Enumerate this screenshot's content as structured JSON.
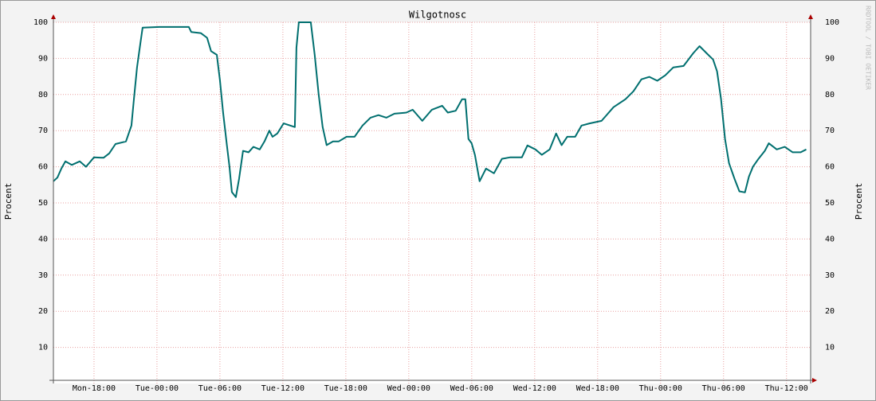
{
  "chart_data": {
    "type": "line",
    "title": "Wilgotnosc",
    "y_label": "Procent",
    "watermark": "RRDTOOL / TOBI OETIKER",
    "x": [
      14.13,
      14.51,
      14.89,
      15.27,
      15.88,
      16.64,
      17.24,
      18.0,
      18.91,
      19.45,
      20.05,
      21.04,
      21.57,
      21.8,
      22.1,
      22.41,
      22.63,
      24.23,
      27.04,
      27.27,
      28.18,
      28.78,
      29.16,
      29.7,
      30.0,
      30.3,
      30.68,
      30.91,
      31.14,
      31.52,
      31.82,
      32.2,
      32.73,
      33.19,
      33.8,
      34.25,
      34.71,
      35.01,
      35.47,
      36.07,
      37.14,
      37.29,
      37.52,
      38.66,
      39.03,
      39.41,
      39.79,
      40.17,
      40.78,
      41.31,
      42.07,
      42.83,
      43.59,
      44.35,
      45.11,
      45.87,
      46.63,
      47.77,
      48.37,
      49.29,
      50.2,
      51.18,
      51.72,
      52.47,
      53.08,
      53.39,
      53.69,
      53.99,
      54.3,
      54.75,
      55.36,
      56.12,
      56.88,
      57.64,
      58.78,
      59.31,
      60.07,
      60.68,
      61.43,
      62.04,
      62.57,
      63.1,
      63.86,
      64.47,
      65.23,
      66.37,
      67.51,
      68.65,
      69.41,
      70.17,
      70.93,
      71.68,
      72.44,
      73.2,
      74.19,
      75.1,
      75.71,
      76.47,
      77.0,
      77.38,
      77.76,
      78.14,
      78.52,
      79.05,
      79.51,
      80.04,
      80.42,
      80.8,
      81.33,
      81.93,
      82.31,
      83.07,
      83.83,
      84.59,
      85.35,
      85.88
    ],
    "series": [
      {
        "name": "Wilgotnosc",
        "color": "#006f6f",
        "values": [
          56,
          57,
          59.5,
          61.5,
          60.5,
          61.5,
          60,
          62.6,
          62.5,
          63.7,
          66.3,
          67,
          71.4,
          78.7,
          87.5,
          94,
          98.5,
          98.7,
          98.7,
          97.3,
          97,
          95.7,
          92,
          91,
          84,
          75,
          65.5,
          60,
          53,
          51.6,
          56.6,
          64.4,
          64,
          65.5,
          64.8,
          67,
          70,
          68.3,
          69.2,
          72,
          71,
          93,
          100,
          100,
          91,
          80,
          71,
          66,
          67,
          67,
          68.3,
          68.3,
          71.4,
          73.6,
          74.3,
          73.6,
          74.7,
          75,
          75.8,
          72.7,
          75.8,
          76.9,
          75,
          75.5,
          78.7,
          78.7,
          67.7,
          66.5,
          63.3,
          56,
          59.5,
          58.2,
          62.2,
          62.6,
          62.6,
          65.9,
          64.8,
          63.3,
          64.8,
          69.2,
          66,
          68.3,
          68.3,
          71.4,
          72,
          72.7,
          76.5,
          78.7,
          80.9,
          84.2,
          84.9,
          83.8,
          85.3,
          87.5,
          87.9,
          91.4,
          93.4,
          91.2,
          89.7,
          86.4,
          78.7,
          67.7,
          61,
          56.6,
          53.2,
          52.9,
          57.3,
          60,
          62.2,
          64.4,
          66.5,
          64.8,
          65.5,
          64,
          64,
          64.8
        ]
      }
    ],
    "xlim": [
      14.13,
      86.3
    ],
    "xticks": [
      {
        "value": 18,
        "label": "Mon-18:00"
      },
      {
        "value": 24,
        "label": "Tue-00:00"
      },
      {
        "value": 30,
        "label": "Tue-06:00"
      },
      {
        "value": 36,
        "label": "Tue-12:00"
      },
      {
        "value": 42,
        "label": "Tue-18:00"
      },
      {
        "value": 48,
        "label": "Wed-00:00"
      },
      {
        "value": 54,
        "label": "Wed-06:00"
      },
      {
        "value": 60,
        "label": "Wed-12:00"
      },
      {
        "value": 66,
        "label": "Wed-18:00"
      },
      {
        "value": 72,
        "label": "Thu-00:00"
      },
      {
        "value": 78,
        "label": "Thu-06:00"
      },
      {
        "value": 84,
        "label": "Thu-12:00"
      }
    ],
    "ylim": [
      0,
      100
    ],
    "yticks": [
      10,
      20,
      30,
      40,
      50,
      60,
      70,
      80,
      90,
      100
    ],
    "grid": true
  }
}
